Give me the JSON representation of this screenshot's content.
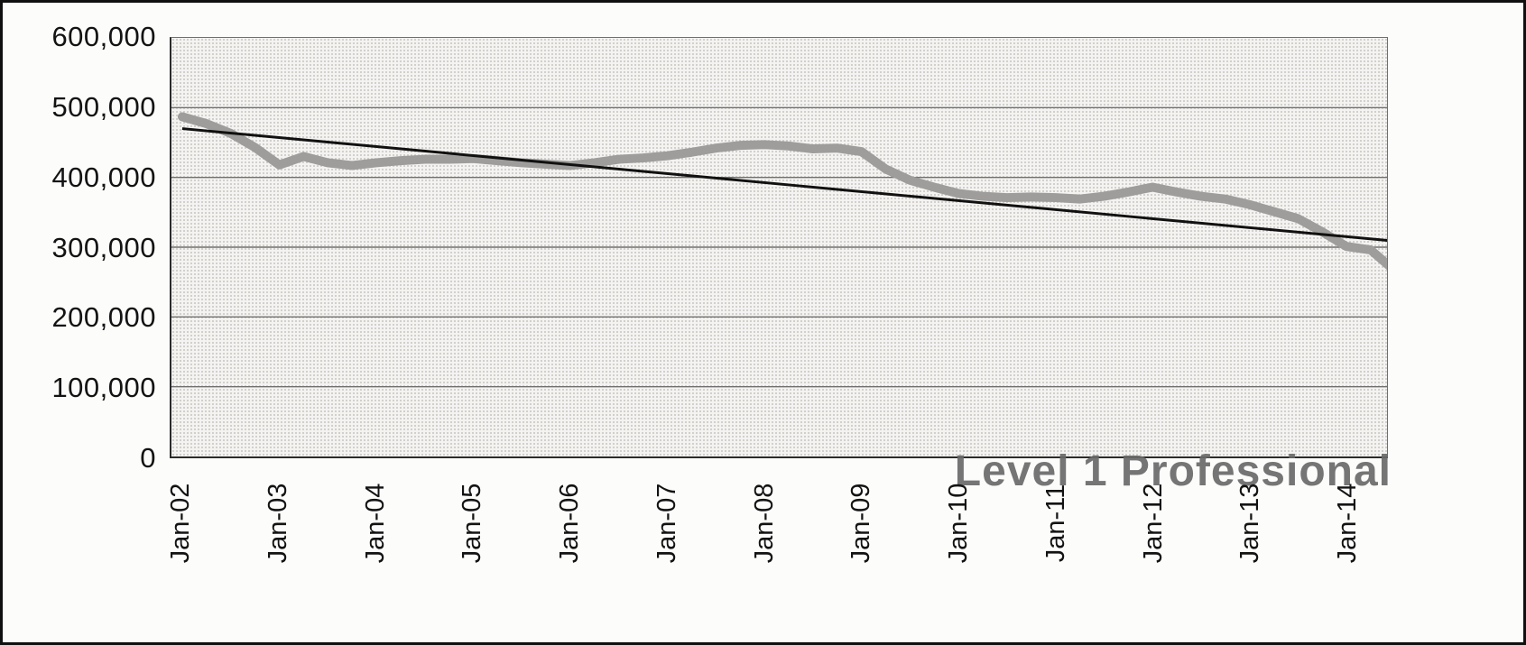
{
  "chart_data": {
    "type": "line",
    "title": "",
    "series_label": "Level 1 Professional",
    "ylim": [
      0,
      600000
    ],
    "gridline_values": [
      500000,
      400000,
      300000,
      200000,
      100000
    ],
    "y_tick_labels": [
      "600,000",
      "500,000",
      "400,000",
      "300,000",
      "200,000",
      "100,000",
      "0"
    ],
    "x_tick_labels": [
      "Jan-02",
      "Jan-03",
      "Jan-04",
      "Jan-05",
      "Jan-06",
      "Jan-07",
      "Jan-08",
      "Jan-09",
      "Jan-10",
      "Jan-11",
      "Jan-12",
      "Jan-13",
      "Jan-14"
    ],
    "x_unit": "years since Jan-02, quarterly",
    "grid": "horizontal",
    "legend_position": "none",
    "series": [
      {
        "name": "Level 1 Professional",
        "color": "#9e9d9b",
        "x_start": 0,
        "x_step": 0.25,
        "values": [
          487000,
          477000,
          463000,
          443000,
          418000,
          430000,
          421000,
          417000,
          421000,
          424000,
          426000,
          426000,
          427000,
          424000,
          421000,
          419000,
          417000,
          421000,
          426000,
          428000,
          431000,
          436000,
          442000,
          446000,
          447000,
          445000,
          441000,
          442000,
          437000,
          412000,
          396000,
          386000,
          377000,
          373000,
          371000,
          372000,
          371000,
          369000,
          373000,
          379000,
          386000,
          379000,
          373000,
          369000,
          361000,
          351000,
          341000,
          322000,
          301000,
          296000,
          266000
        ]
      },
      {
        "name": "Linear trend (Level 1 Professional)",
        "color": "#111111",
        "x": [
          0,
          12.55
        ],
        "values": [
          470000,
          308000
        ]
      }
    ]
  }
}
